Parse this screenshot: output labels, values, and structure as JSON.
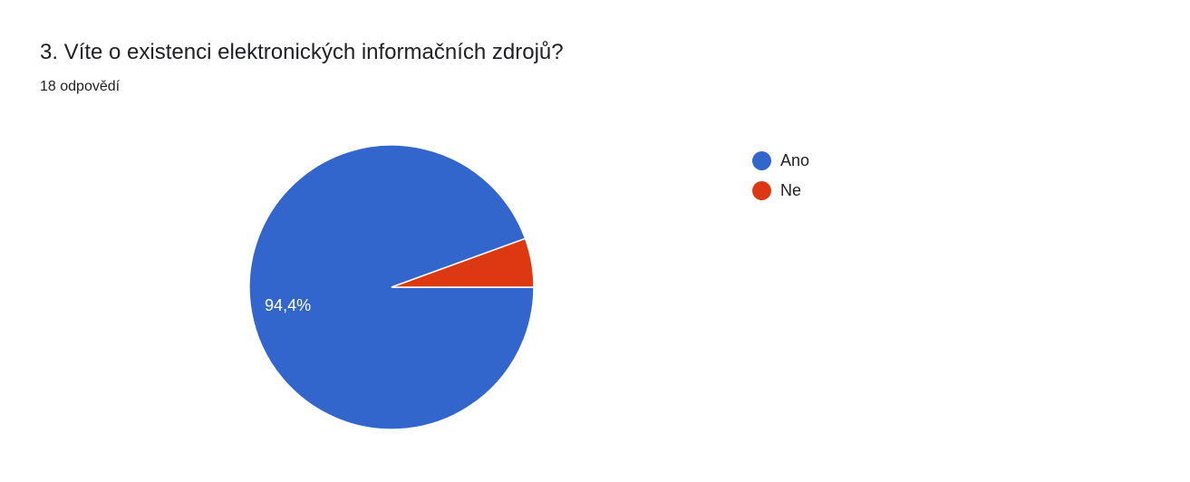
{
  "header": {
    "title": "3. Víte o existenci elektronických informačních zdrojů?",
    "responses": "18 odpovědí"
  },
  "chart_data": {
    "type": "pie",
    "categories": [
      "Ano",
      "Ne"
    ],
    "values": [
      17,
      1
    ],
    "data_labels": [
      "94,4%",
      ""
    ],
    "colors": [
      "#3366cc",
      "#dc3912"
    ],
    "legend_position": "right"
  }
}
